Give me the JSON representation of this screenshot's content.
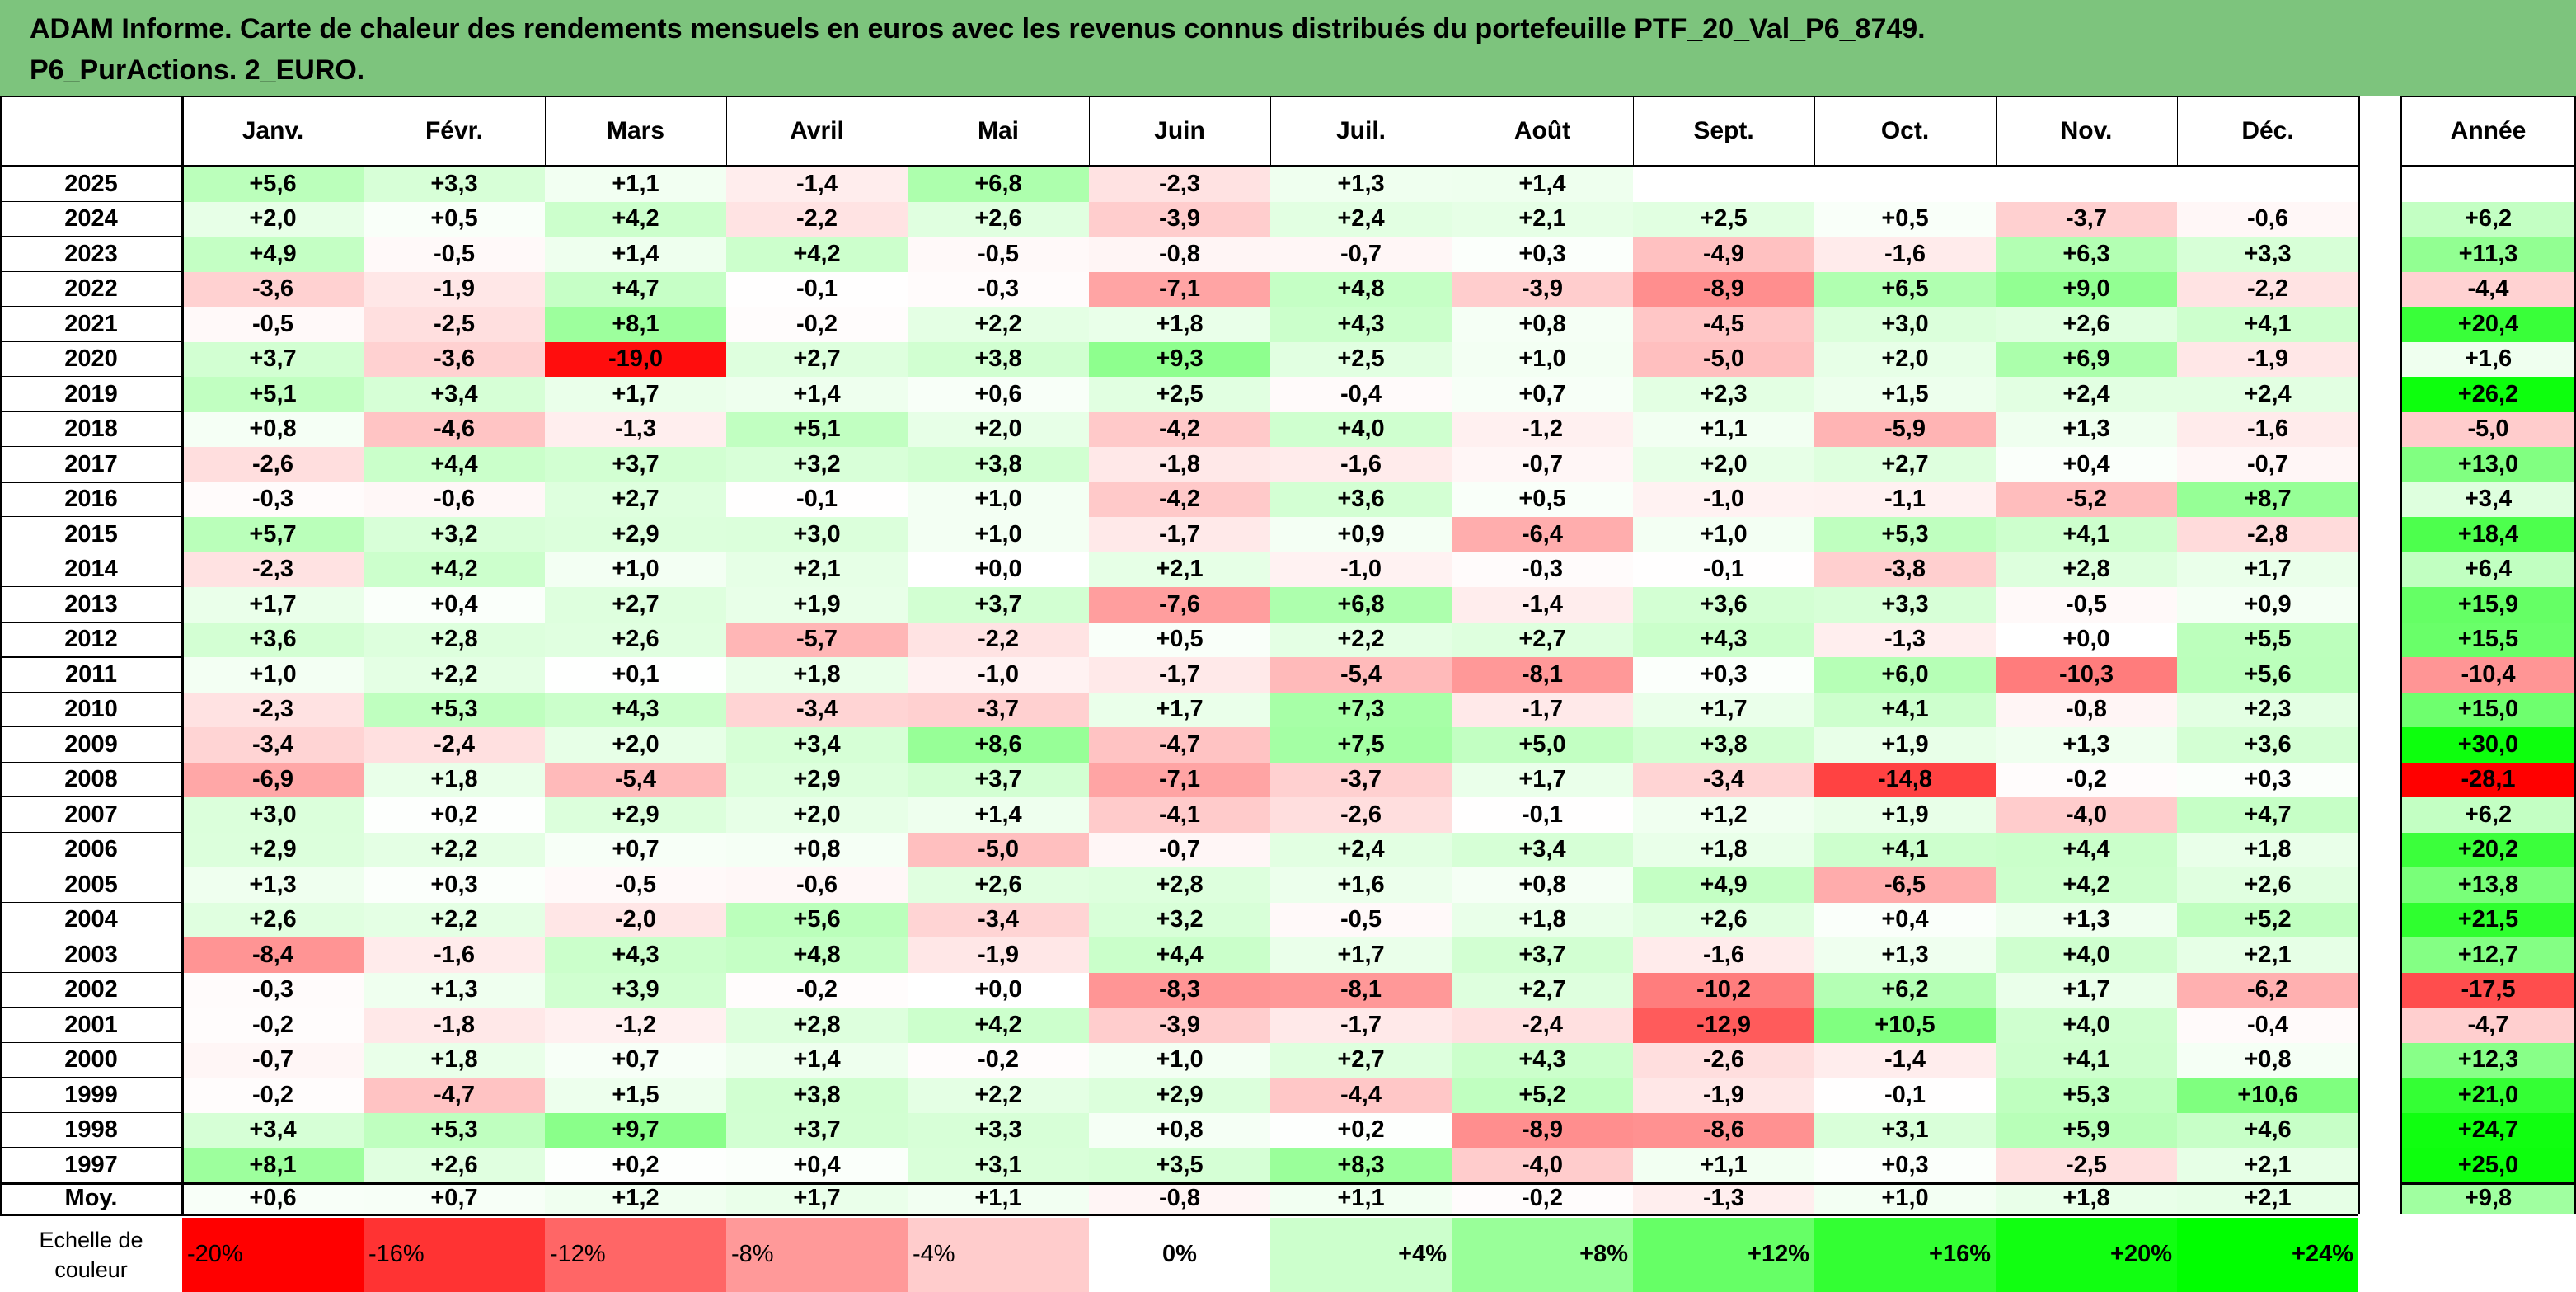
{
  "title": {
    "line1": "ADAM Informe. Carte de chaleur des rendements mensuels en euros avec les revenus connus distribués du portefeuille PTF_20_Val_P6_8749.",
    "line2": "P6_PurActions. 2_EURO."
  },
  "colors": {
    "title_bg": "#7dc47d",
    "positive_max": "#00ff00",
    "negative_max": "#ff0000",
    "neutral": "#ffffff"
  },
  "corner_label": "",
  "annual_header": "Année",
  "chart_data": {
    "type": "heatmap",
    "title": "ADAM Informe. Carte de chaleur des rendements mensuels en euros avec les revenus connus distribués du portefeuille PTF_20_Val_P6_8749. P6_PurActions. 2_EURO.",
    "months": [
      "Janv.",
      "Févr.",
      "Mars",
      "Avril",
      "Mai",
      "Juin",
      "Juil.",
      "Août",
      "Sept.",
      "Oct.",
      "Nov.",
      "Déc."
    ],
    "years": [
      "2025",
      "2024",
      "2023",
      "2022",
      "2021",
      "2020",
      "2019",
      "2018",
      "2017",
      "2016",
      "2015",
      "2014",
      "2013",
      "2012",
      "2011",
      "2010",
      "2009",
      "2008",
      "2007",
      "2006",
      "2005",
      "2004",
      "2003",
      "2002",
      "2001",
      "2000",
      "1999",
      "1998",
      "1997"
    ],
    "values": [
      [
        "+5,6",
        "+3,3",
        "+1,1",
        "-1,4",
        "+6,8",
        "-2,3",
        "+1,3",
        "+1,4",
        "",
        "",
        "",
        ""
      ],
      [
        "+2,0",
        "+0,5",
        "+4,2",
        "-2,2",
        "+2,6",
        "-3,9",
        "+2,4",
        "+2,1",
        "+2,5",
        "+0,5",
        "-3,7",
        "-0,6"
      ],
      [
        "+4,9",
        "-0,5",
        "+1,4",
        "+4,2",
        "-0,5",
        "-0,8",
        "-0,7",
        "+0,3",
        "-4,9",
        "-1,6",
        "+6,3",
        "+3,3"
      ],
      [
        "-3,6",
        "-1,9",
        "+4,7",
        "-0,1",
        "-0,3",
        "-7,1",
        "+4,8",
        "-3,9",
        "-8,9",
        "+6,5",
        "+9,0",
        "-2,2"
      ],
      [
        "-0,5",
        "-2,5",
        "+8,1",
        "-0,2",
        "+2,2",
        "+1,8",
        "+4,3",
        "+0,8",
        "-4,5",
        "+3,0",
        "+2,6",
        "+4,1"
      ],
      [
        "+3,7",
        "-3,6",
        "-19,0",
        "+2,7",
        "+3,8",
        "+9,3",
        "+2,5",
        "+1,0",
        "-5,0",
        "+2,0",
        "+6,9",
        "-1,9"
      ],
      [
        "+5,1",
        "+3,4",
        "+1,7",
        "+1,4",
        "+0,6",
        "+2,5",
        "-0,4",
        "+0,7",
        "+2,3",
        "+1,5",
        "+2,4",
        "+2,4"
      ],
      [
        "+0,8",
        "-4,6",
        "-1,3",
        "+5,1",
        "+2,0",
        "-4,2",
        "+4,0",
        "-1,2",
        "+1,1",
        "-5,9",
        "+1,3",
        "-1,6"
      ],
      [
        "-2,6",
        "+4,4",
        "+3,7",
        "+3,2",
        "+3,8",
        "-1,8",
        "-1,6",
        "-0,7",
        "+2,0",
        "+2,7",
        "+0,4",
        "-0,7"
      ],
      [
        "-0,3",
        "-0,6",
        "+2,7",
        "-0,1",
        "+1,0",
        "-4,2",
        "+3,6",
        "+0,5",
        "-1,0",
        "-1,1",
        "-5,2",
        "+8,7"
      ],
      [
        "+5,7",
        "+3,2",
        "+2,9",
        "+3,0",
        "+1,0",
        "-1,7",
        "+0,9",
        "-6,4",
        "+1,0",
        "+5,3",
        "+4,1",
        "-2,8"
      ],
      [
        "-2,3",
        "+4,2",
        "+1,0",
        "+2,1",
        "+0,0",
        "+2,1",
        "-1,0",
        "-0,3",
        "-0,1",
        "-3,8",
        "+2,8",
        "+1,7"
      ],
      [
        "+1,7",
        "+0,4",
        "+2,7",
        "+1,9",
        "+3,7",
        "-7,6",
        "+6,8",
        "-1,4",
        "+3,6",
        "+3,3",
        "-0,5",
        "+0,9"
      ],
      [
        "+3,6",
        "+2,8",
        "+2,6",
        "-5,7",
        "-2,2",
        "+0,5",
        "+2,2",
        "+2,7",
        "+4,3",
        "-1,3",
        "+0,0",
        "+5,5"
      ],
      [
        "+1,0",
        "+2,2",
        "+0,1",
        "+1,8",
        "-1,0",
        "-1,7",
        "-5,4",
        "-8,1",
        "+0,3",
        "+6,0",
        "-10,3",
        "+5,6"
      ],
      [
        "-2,3",
        "+5,3",
        "+4,3",
        "-3,4",
        "-3,7",
        "+1,7",
        "+7,3",
        "-1,7",
        "+1,7",
        "+4,1",
        "-0,8",
        "+2,3"
      ],
      [
        "-3,4",
        "-2,4",
        "+2,0",
        "+3,4",
        "+8,6",
        "-4,7",
        "+7,5",
        "+5,0",
        "+3,8",
        "+1,9",
        "+1,3",
        "+3,6"
      ],
      [
        "-6,9",
        "+1,8",
        "-5,4",
        "+2,9",
        "+3,7",
        "-7,1",
        "-3,7",
        "+1,7",
        "-3,4",
        "-14,8",
        "-0,2",
        "+0,3"
      ],
      [
        "+3,0",
        "+0,2",
        "+2,9",
        "+2,0",
        "+1,4",
        "-4,1",
        "-2,6",
        "-0,1",
        "+1,2",
        "+1,9",
        "-4,0",
        "+4,7"
      ],
      [
        "+2,9",
        "+2,2",
        "+0,7",
        "+0,8",
        "-5,0",
        "-0,7",
        "+2,4",
        "+3,4",
        "+1,8",
        "+4,1",
        "+4,4",
        "+1,8"
      ],
      [
        "+1,3",
        "+0,3",
        "-0,5",
        "-0,6",
        "+2,6",
        "+2,8",
        "+1,6",
        "+0,8",
        "+4,9",
        "-6,5",
        "+4,2",
        "+2,6"
      ],
      [
        "+2,6",
        "+2,2",
        "-2,0",
        "+5,6",
        "-3,4",
        "+3,2",
        "-0,5",
        "+1,8",
        "+2,6",
        "+0,4",
        "+1,3",
        "+5,2"
      ],
      [
        "-8,4",
        "-1,6",
        "+4,3",
        "+4,8",
        "-1,9",
        "+4,4",
        "+1,7",
        "+3,7",
        "-1,6",
        "+1,3",
        "+4,0",
        "+2,1"
      ],
      [
        "-0,3",
        "+1,3",
        "+3,9",
        "-0,2",
        "+0,0",
        "-8,3",
        "-8,1",
        "+2,7",
        "-10,2",
        "+6,2",
        "+1,7",
        "-6,2"
      ],
      [
        "-0,2",
        "-1,8",
        "-1,2",
        "+2,8",
        "+4,2",
        "-3,9",
        "-1,7",
        "-2,4",
        "-12,9",
        "+10,5",
        "+4,0",
        "-0,4"
      ],
      [
        "-0,7",
        "+1,8",
        "+0,7",
        "+1,4",
        "-0,2",
        "+1,0",
        "+2,7",
        "+4,3",
        "-2,6",
        "-1,4",
        "+4,1",
        "+0,8"
      ],
      [
        "-0,2",
        "-4,7",
        "+1,5",
        "+3,8",
        "+2,2",
        "+2,9",
        "-4,4",
        "+5,2",
        "-1,9",
        "-0,1",
        "+5,3",
        "+10,6"
      ],
      [
        "+3,4",
        "+5,3",
        "+9,7",
        "+3,7",
        "+3,3",
        "+0,8",
        "+0,2",
        "-8,9",
        "-8,6",
        "+3,1",
        "+5,9",
        "+4,6"
      ],
      [
        "+8,1",
        "+2,6",
        "+0,2",
        "+0,4",
        "+3,1",
        "+3,5",
        "+8,3",
        "-4,0",
        "+1,1",
        "+0,3",
        "-2,5",
        "+2,1"
      ]
    ],
    "annual": [
      "",
      "+6,2",
      "+11,3",
      "-4,4",
      "+20,4",
      "+1,6",
      "+26,2",
      "-5,0",
      "+13,0",
      "+3,4",
      "+18,4",
      "+6,4",
      "+15,9",
      "+15,5",
      "-10,4",
      "+15,0",
      "+30,0",
      "-28,1",
      "+6,2",
      "+20,2",
      "+13,8",
      "+21,5",
      "+12,7",
      "-17,5",
      "-4,7",
      "+12,3",
      "+21,0",
      "+24,7",
      "+25,0"
    ],
    "average": {
      "label": "Moy.",
      "values": [
        "+0,6",
        "+0,7",
        "+1,2",
        "+1,7",
        "+1,1",
        "-0,8",
        "+1,1",
        "-0,2",
        "-1,3",
        "+1,0",
        "+1,8",
        "+2,1"
      ],
      "annual": "+9,8"
    },
    "color_scale": {
      "label": "Echelle de couleur",
      "stops": [
        "-20%",
        "-16%",
        "-12%",
        "-8%",
        "-4%",
        "0%",
        "+4%",
        "+8%",
        "+12%",
        "+16%",
        "+20%",
        "+24%"
      ],
      "colors": [
        "#ff0000",
        "#ff3333",
        "#ff6666",
        "#ff9999",
        "#ffcccc",
        "#ffffff",
        "#ccffcc",
        "#99ff99",
        "#66ff66",
        "#33ff33",
        "#11ff11",
        "#00ff00"
      ]
    }
  }
}
